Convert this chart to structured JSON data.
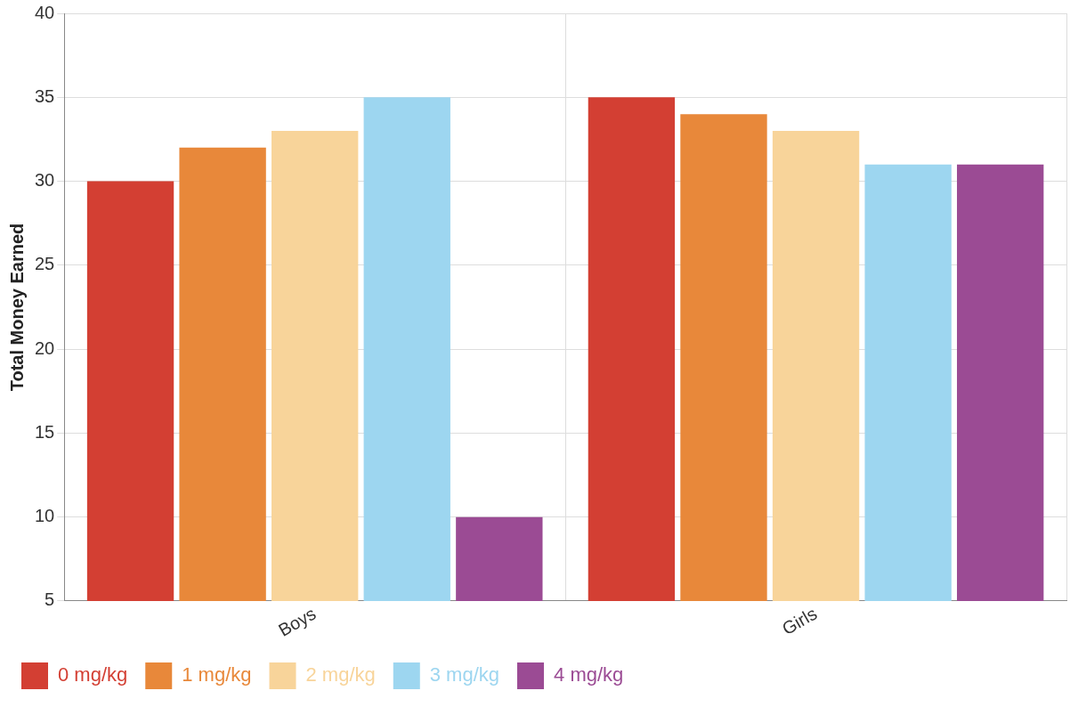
{
  "chart_data": {
    "type": "bar",
    "ylabel": "Total Money Earned",
    "categories": [
      "Boys",
      "Girls"
    ],
    "series": [
      {
        "name": "0 mg/kg",
        "color": "#d33f33",
        "values": [
          30,
          35
        ]
      },
      {
        "name": "1 mg/kg",
        "color": "#e8883a",
        "values": [
          32,
          34
        ]
      },
      {
        "name": "2 mg/kg",
        "color": "#f8d49a",
        "values": [
          33,
          33
        ]
      },
      {
        "name": "3 mg/kg",
        "color": "#9dd6f0",
        "values": [
          35,
          31
        ]
      },
      {
        "name": "4 mg/kg",
        "color": "#9b4b94",
        "values": [
          10,
          31
        ]
      }
    ],
    "ylim": [
      5,
      40
    ],
    "yticks": [
      5,
      10,
      15,
      20,
      25,
      30,
      35,
      40
    ],
    "grid": true,
    "legend": "bottom"
  }
}
